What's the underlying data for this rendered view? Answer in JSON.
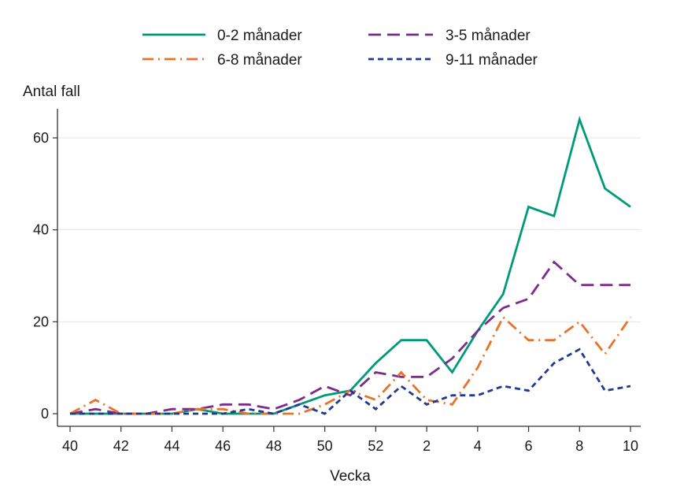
{
  "chart_data": {
    "type": "line",
    "title": "",
    "xlabel": "Vecka",
    "ylabel": "Antal fall",
    "ylim": [
      0,
      66
    ],
    "y_ticks": [
      0,
      20,
      40,
      60
    ],
    "grid": true,
    "legend_position": "top",
    "categories": [
      "40",
      "41",
      "42",
      "43",
      "44",
      "45",
      "46",
      "47",
      "48",
      "49",
      "50",
      "51",
      "52",
      "1",
      "2",
      "3",
      "4",
      "5",
      "6",
      "7",
      "8",
      "9",
      "10"
    ],
    "x_tick_labels": [
      "40",
      "42",
      "44",
      "46",
      "48",
      "50",
      "52",
      "2",
      "4",
      "6",
      "8",
      "10"
    ],
    "series": [
      {
        "name": "0-2 månader",
        "color": "#009a7a",
        "dash": "solid",
        "values": [
          0,
          0,
          0,
          0,
          0,
          1,
          0,
          0,
          0,
          2,
          4,
          5,
          11,
          16,
          16,
          9,
          18,
          26,
          45,
          43,
          64,
          49,
          45
        ]
      },
      {
        "name": "3-5 månader",
        "color": "#7b2d8e",
        "dash": "longdash",
        "values": [
          0,
          1,
          0,
          0,
          1,
          1,
          2,
          2,
          1,
          3,
          6,
          4,
          9,
          8,
          8,
          12,
          18,
          23,
          25,
          33,
          28,
          28,
          28
        ]
      },
      {
        "name": "6-8 månader",
        "color": "#e8722a",
        "dash": "dashdot",
        "values": [
          0,
          3,
          0,
          0,
          0,
          1,
          1,
          0,
          0,
          0,
          2,
          5,
          3,
          9,
          3,
          2,
          10,
          21,
          16,
          16,
          20,
          13,
          21
        ]
      },
      {
        "name": "9-11 månader",
        "color": "#1f3a8f",
        "dash": "shortdash",
        "values": [
          0,
          0,
          0,
          0,
          0,
          0,
          0,
          1,
          0,
          2,
          0,
          5,
          1,
          6,
          2,
          4,
          4,
          6,
          5,
          11,
          14,
          5,
          6
        ]
      }
    ]
  }
}
